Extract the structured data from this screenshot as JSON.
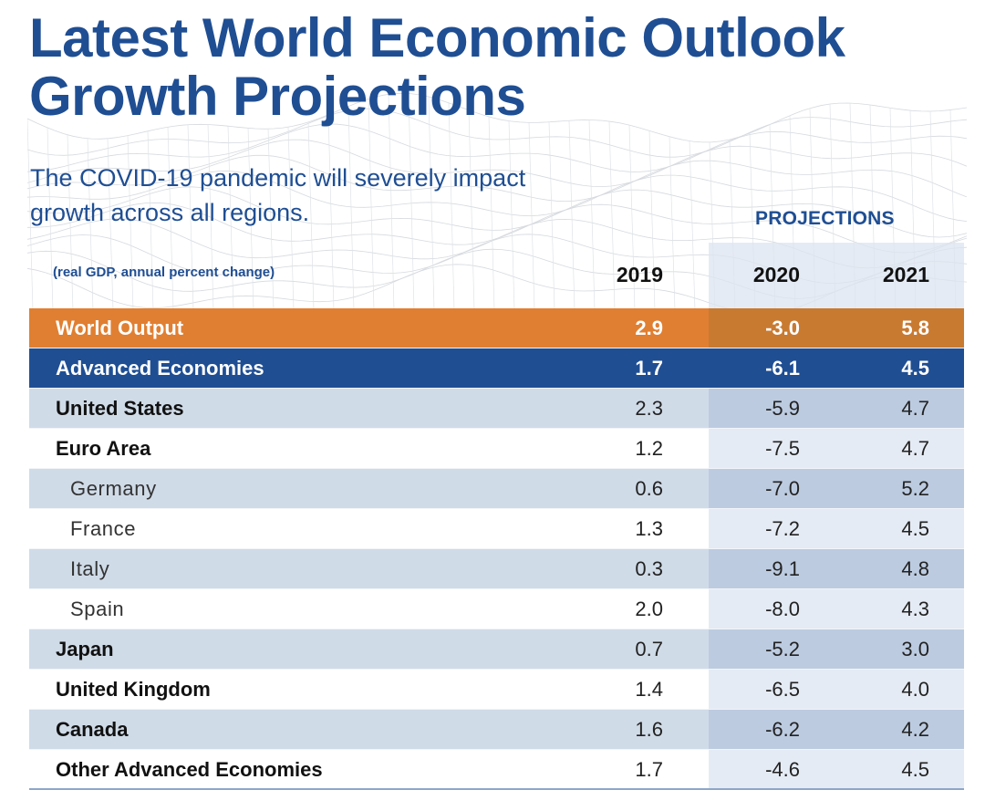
{
  "header": {
    "title_line1": "Latest World Economic Outlook",
    "title_line2": "Growth Projections",
    "subtitle_line1": "The COVID-19 pandemic will severely impact",
    "subtitle_line2": "growth across all regions.",
    "projections_label": "PROJECTIONS",
    "units_label": "(real GDP, annual percent change)"
  },
  "colors": {
    "brand_blue": "#1f4e93",
    "world_orange": "#e07f32",
    "row_shade": "#d0dbe8",
    "projection_shade": "#bccbe0"
  },
  "chart_data": {
    "type": "table",
    "title": "Latest World Economic Outlook Growth Projections",
    "subtitle": "The COVID-19 pandemic will severely impact growth across all regions.",
    "units": "(real GDP, annual percent change)",
    "column_group": "PROJECTIONS",
    "projected_columns": [
      "2020",
      "2021"
    ],
    "columns": [
      "2019",
      "2020",
      "2021"
    ],
    "rows": [
      {
        "label": "World Output",
        "style": "world",
        "values": [
          "2.9",
          "-3.0",
          "5.8"
        ]
      },
      {
        "label": "Advanced Economies",
        "style": "adv",
        "values": [
          "1.7",
          "-6.1",
          "4.5"
        ]
      },
      {
        "label": "United States",
        "style": "shaded",
        "values": [
          "2.3",
          "-5.9",
          "4.7"
        ]
      },
      {
        "label": "Euro Area",
        "style": "plain",
        "values": [
          "1.2",
          "-7.5",
          "4.7"
        ]
      },
      {
        "label": "Germany",
        "style": "shaded sub",
        "values": [
          "0.6",
          "-7.0",
          "5.2"
        ]
      },
      {
        "label": "France",
        "style": "plain sub",
        "values": [
          "1.3",
          "-7.2",
          "4.5"
        ]
      },
      {
        "label": "Italy",
        "style": "shaded sub",
        "values": [
          "0.3",
          "-9.1",
          "4.8"
        ]
      },
      {
        "label": "Spain",
        "style": "plain sub",
        "values": [
          "2.0",
          "-8.0",
          "4.3"
        ]
      },
      {
        "label": "Japan",
        "style": "shaded",
        "values": [
          "0.7",
          "-5.2",
          "3.0"
        ]
      },
      {
        "label": "United Kingdom",
        "style": "plain",
        "values": [
          "1.4",
          "-6.5",
          "4.0"
        ]
      },
      {
        "label": "Canada",
        "style": "shaded",
        "values": [
          "1.6",
          "-6.2",
          "4.2"
        ]
      },
      {
        "label": "Other Advanced Economies",
        "style": "plain",
        "values": [
          "1.7",
          "-4.6",
          "4.5"
        ]
      }
    ]
  }
}
